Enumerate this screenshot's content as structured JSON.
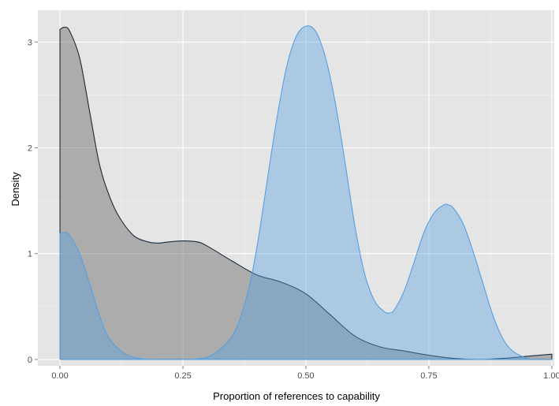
{
  "chart_data": {
    "type": "area",
    "xlabel": "Proportion of references to capability",
    "ylabel": "Density",
    "xlim": [
      -0.045,
      1.005
    ],
    "ylim": [
      -0.06,
      3.3
    ],
    "x_ticks": [
      0.0,
      0.25,
      0.5,
      0.75,
      1.0
    ],
    "x_tick_labels": [
      "0.00",
      "0.25",
      "0.50",
      "0.75",
      "1.00"
    ],
    "y_ticks": [
      0,
      1,
      2,
      3
    ],
    "y_tick_labels": [
      "0",
      "1",
      "2",
      "3"
    ],
    "grid": true,
    "legend": "none",
    "series": [
      {
        "color": "#1a2a3a",
        "fill": "#666666",
        "fill_opacity": 0.45,
        "x": [
          0.0,
          0.01,
          0.02,
          0.04,
          0.06,
          0.08,
          0.1,
          0.12,
          0.15,
          0.18,
          0.2,
          0.22,
          0.25,
          0.28,
          0.3,
          0.35,
          0.4,
          0.45,
          0.5,
          0.55,
          0.6,
          0.65,
          0.7,
          0.75,
          0.8,
          0.85,
          0.9,
          0.95,
          1.0
        ],
        "y": [
          3.12,
          3.14,
          3.1,
          2.85,
          2.35,
          1.85,
          1.55,
          1.35,
          1.17,
          1.11,
          1.1,
          1.11,
          1.12,
          1.11,
          1.07,
          0.93,
          0.8,
          0.73,
          0.62,
          0.42,
          0.22,
          0.12,
          0.08,
          0.04,
          0.01,
          0.0,
          0.01,
          0.03,
          0.05
        ]
      },
      {
        "color": "#56a0e0",
        "fill": "#56a0e0",
        "fill_opacity": 0.4,
        "x": [
          0.0,
          0.01,
          0.02,
          0.04,
          0.06,
          0.08,
          0.1,
          0.13,
          0.16,
          0.2,
          0.25,
          0.3,
          0.35,
          0.38,
          0.4,
          0.42,
          0.44,
          0.46,
          0.48,
          0.5,
          0.52,
          0.54,
          0.56,
          0.58,
          0.6,
          0.62,
          0.64,
          0.66,
          0.67,
          0.68,
          0.7,
          0.72,
          0.74,
          0.76,
          0.78,
          0.79,
          0.8,
          0.82,
          0.84,
          0.86,
          0.88,
          0.9,
          0.92,
          0.95,
          0.97,
          1.0
        ],
        "y": [
          1.19,
          1.2,
          1.17,
          1.0,
          0.72,
          0.42,
          0.2,
          0.06,
          0.01,
          0.0,
          0.0,
          0.02,
          0.22,
          0.6,
          1.05,
          1.65,
          2.25,
          2.75,
          3.05,
          3.15,
          3.1,
          2.85,
          2.42,
          1.85,
          1.25,
          0.8,
          0.55,
          0.45,
          0.44,
          0.47,
          0.65,
          0.92,
          1.2,
          1.38,
          1.46,
          1.46,
          1.43,
          1.28,
          1.02,
          0.72,
          0.42,
          0.2,
          0.08,
          0.01,
          0.0,
          0.0
        ]
      }
    ]
  }
}
